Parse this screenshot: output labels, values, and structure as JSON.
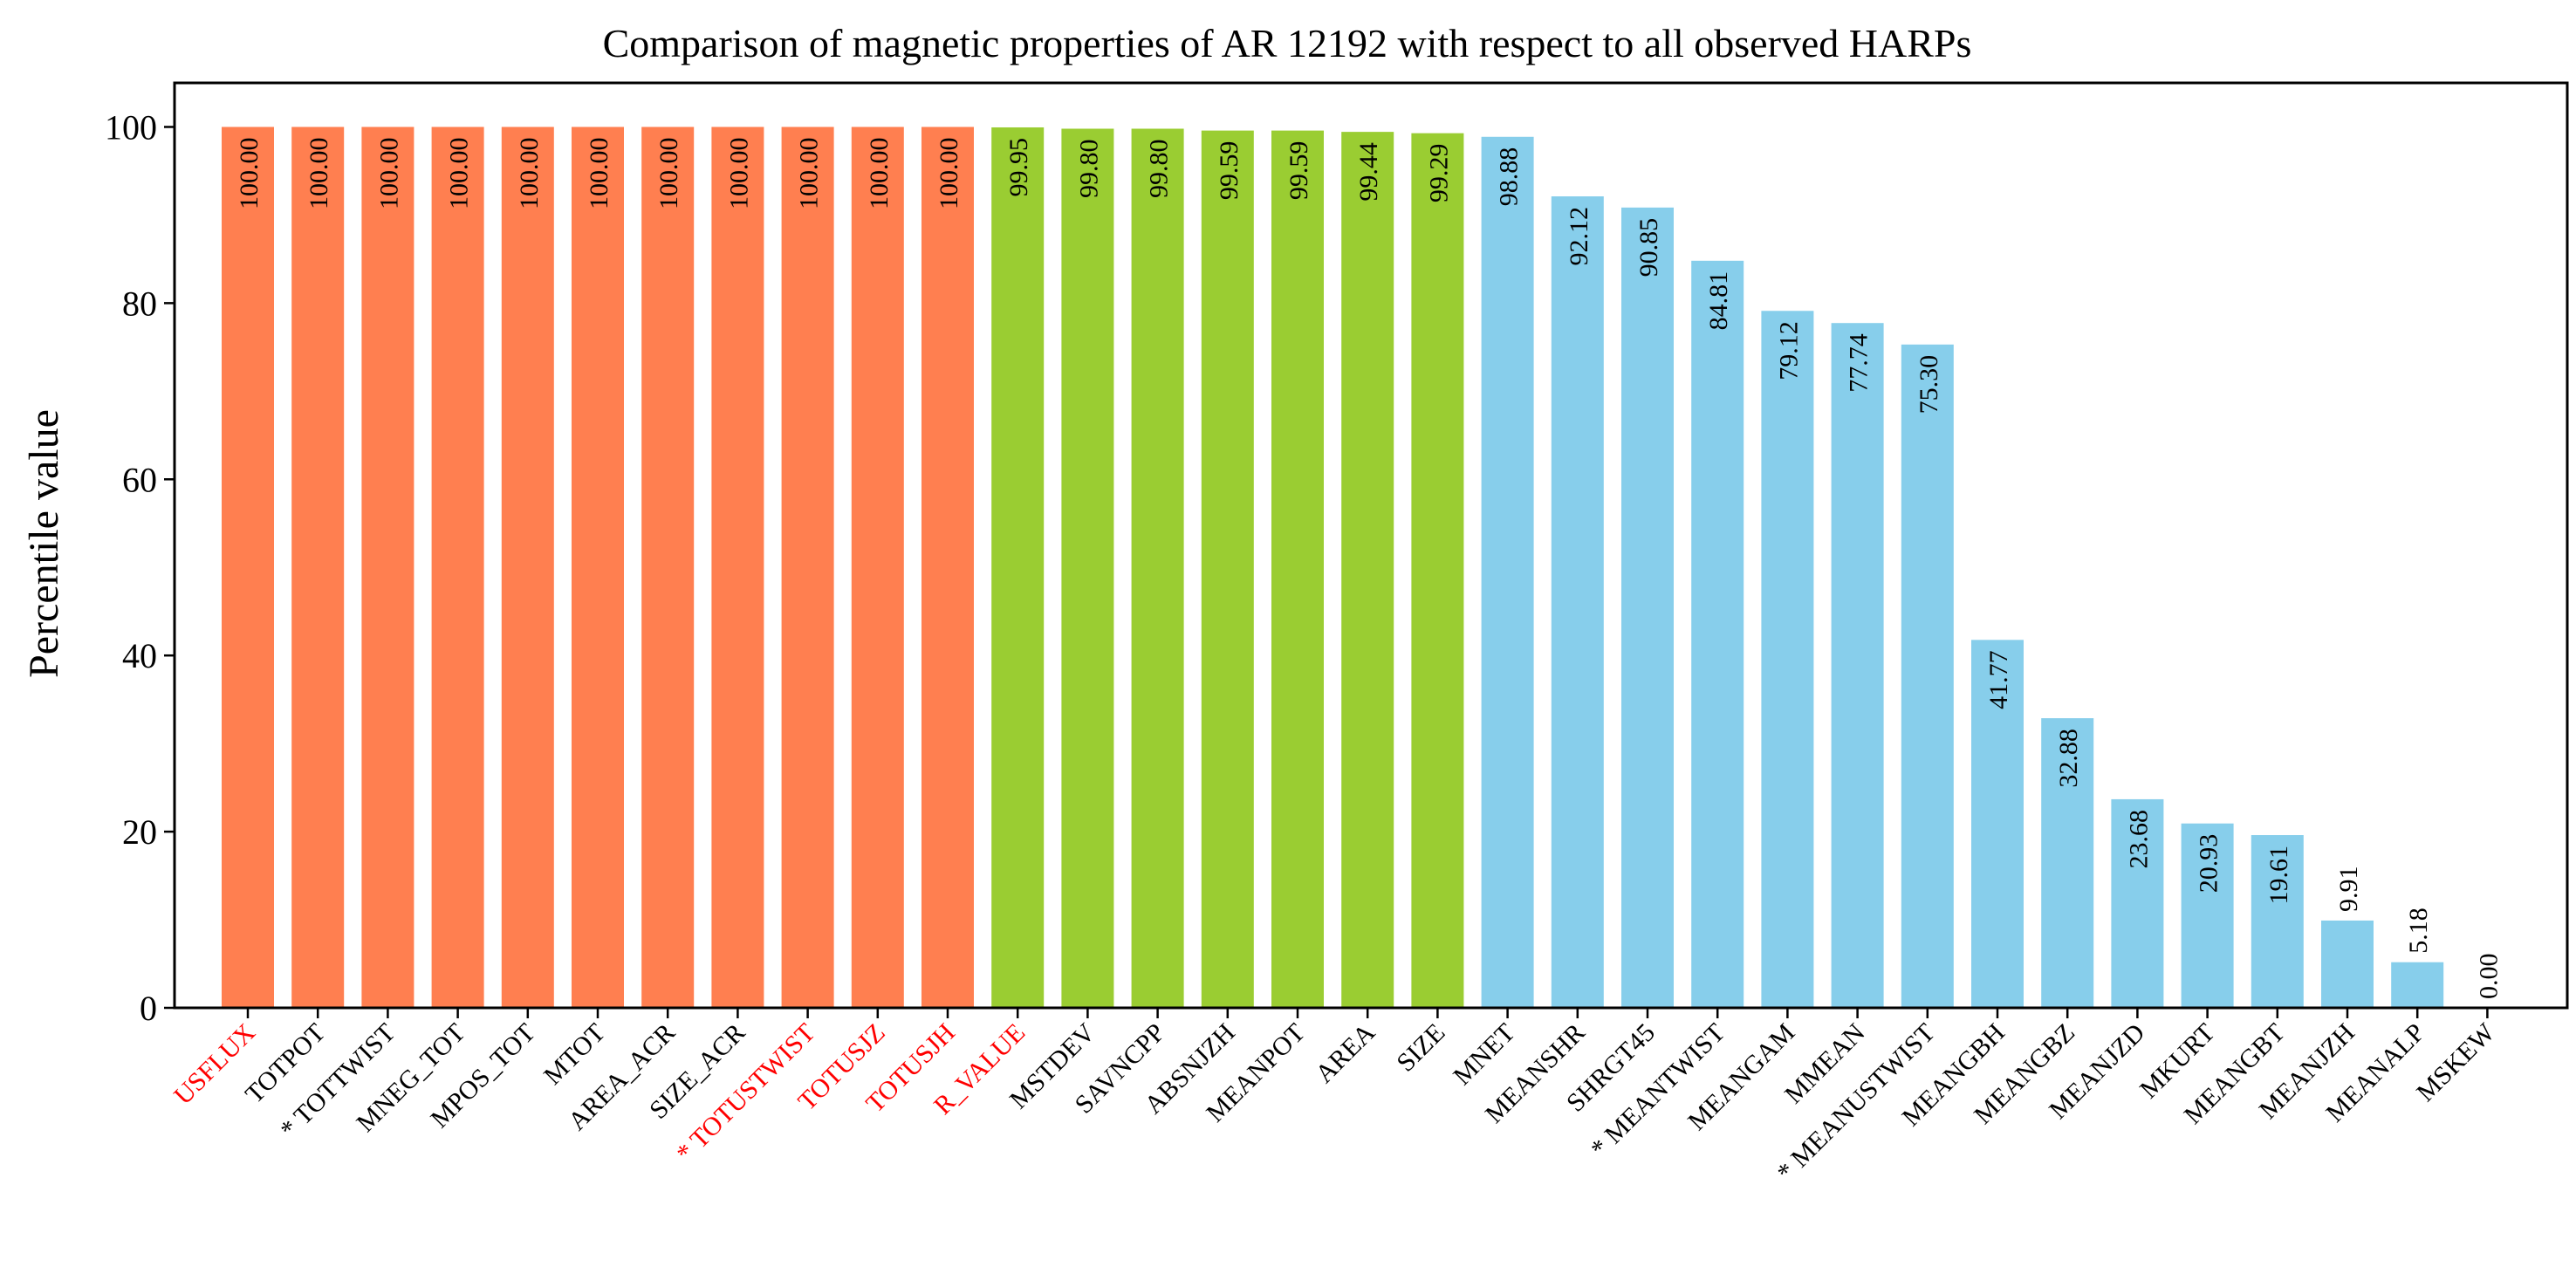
{
  "chart_data": {
    "type": "bar",
    "title": "Comparison of magnetic properties of AR 12192 with respect to all observed HARPs",
    "xlabel": "",
    "ylabel": "Percentile value",
    "ylim": [
      0,
      105
    ],
    "yticks": [
      0,
      20,
      40,
      60,
      80,
      100
    ],
    "grid": false,
    "categories": [
      "USFLUX",
      "TOTPOT",
      "* TOTTWIST",
      "MNEG_TOT",
      "MPOS_TOT",
      "MTOT",
      "AREA_ACR",
      "SIZE_ACR",
      "* TOTUSTWIST",
      "TOTUSJZ",
      "TOTUSJH",
      "R_VALUE",
      "MSTDEV",
      "SAVNCPP",
      "ABSNJZH",
      "MEANPOT",
      "AREA",
      "SIZE",
      "MNET",
      "MEANSHR",
      "SHRGT45",
      "* MEANTWIST",
      "MEANGAM",
      "MMEAN",
      "* MEANUSTWIST",
      "MEANGBH",
      "MEANGBZ",
      "MEANJZD",
      "MKURT",
      "MEANGBT",
      "MEANJZH",
      "MEANALP",
      "MSKEW"
    ],
    "values": [
      100.0,
      100.0,
      100.0,
      100.0,
      100.0,
      100.0,
      100.0,
      100.0,
      100.0,
      100.0,
      100.0,
      99.95,
      99.8,
      99.8,
      99.59,
      99.59,
      99.44,
      99.29,
      98.88,
      92.12,
      90.85,
      84.81,
      79.12,
      77.74,
      75.3,
      41.77,
      32.88,
      23.68,
      20.93,
      19.61,
      9.91,
      5.18,
      0.0
    ],
    "value_labels": [
      "100.00",
      "100.00",
      "100.00",
      "100.00",
      "100.00",
      "100.00",
      "100.00",
      "100.00",
      "100.00",
      "100.00",
      "100.00",
      "99.95",
      "99.80",
      "99.80",
      "99.59",
      "99.59",
      "99.44",
      "99.29",
      "98.88",
      "92.12",
      "90.85",
      "84.81",
      "79.12",
      "77.74",
      "75.30",
      "41.77",
      "32.88",
      "23.68",
      "20.93",
      "19.61",
      "9.91",
      "5.18",
      "0.00"
    ],
    "bar_colors": [
      "#FF7F50",
      "#FF7F50",
      "#FF7F50",
      "#FF7F50",
      "#FF7F50",
      "#FF7F50",
      "#FF7F50",
      "#FF7F50",
      "#FF7F50",
      "#FF7F50",
      "#FF7F50",
      "#9ACD32",
      "#9ACD32",
      "#9ACD32",
      "#9ACD32",
      "#9ACD32",
      "#9ACD32",
      "#9ACD32",
      "#87CEEB",
      "#87CEEB",
      "#87CEEB",
      "#87CEEB",
      "#87CEEB",
      "#87CEEB",
      "#87CEEB",
      "#87CEEB",
      "#87CEEB",
      "#87CEEB",
      "#87CEEB",
      "#87CEEB",
      "#87CEEB",
      "#87CEEB",
      "#87CEEB"
    ],
    "highlighted_categories": [
      "USFLUX",
      "* TOTUSTWIST",
      "TOTUSJZ",
      "TOTUSJH",
      "R_VALUE"
    ],
    "highlight_color": "#FF0000",
    "label_color": "#000000"
  }
}
